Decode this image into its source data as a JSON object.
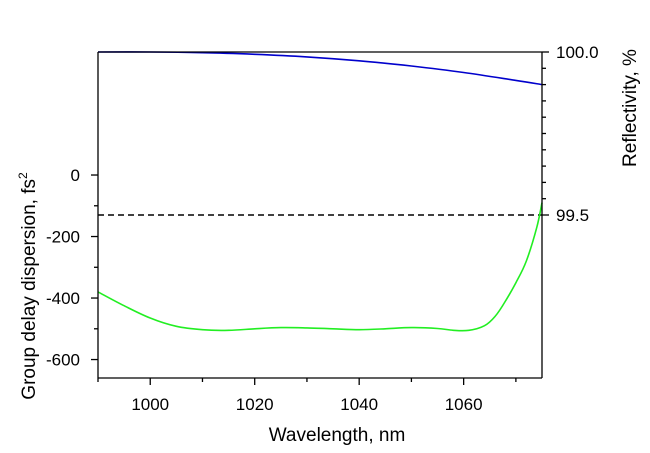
{
  "chart_data": {
    "type": "line",
    "title": "",
    "xlabel": "Wavelength, nm",
    "ylabel_left": "Group delay dispersion, fs",
    "ylabel_left_sup": "2",
    "ylabel_right": "Reflectivity, %",
    "xlim": [
      990,
      1075
    ],
    "ylim_left": [
      -660,
      400
    ],
    "ylim_right": [
      99.0,
      100.0
    ],
    "x_ticks": [
      1000,
      1020,
      1040,
      1060
    ],
    "x_minor_ticks": [
      990,
      1010,
      1030,
      1050,
      1070
    ],
    "y_left_ticks": [
      0,
      -200,
      -400,
      -600
    ],
    "y_left_tick_labels": [
      "0",
      "-200",
      "-400",
      "-600"
    ],
    "y_left_minor_ticks": [
      -100,
      -300,
      -500
    ],
    "y_right_ticks": [
      100.0,
      99.5
    ],
    "y_right_tick_labels": [
      "100.0",
      "99.5"
    ],
    "y_right_minor_ticks": [
      99.95,
      99.9,
      99.85,
      99.8,
      99.75,
      99.7,
      99.65,
      99.6,
      99.55
    ],
    "grid": false,
    "series": [
      {
        "axis": "right",
        "color": "#0000cc",
        "style": "solid",
        "x": [
          990,
          1000,
          1010,
          1020,
          1030,
          1040,
          1050,
          1060,
          1070,
          1075
        ],
        "y": [
          100.0,
          100.0,
          99.998,
          99.993,
          99.985,
          99.973,
          99.957,
          99.937,
          99.913,
          99.9
        ]
      },
      {
        "axis": "right",
        "color": "#000000",
        "style": "dashed",
        "x": [
          990,
          1075
        ],
        "y": [
          99.5,
          99.5
        ]
      },
      {
        "axis": "left",
        "color": "#22ee22",
        "style": "solid",
        "x": [
          990,
          995,
          1000,
          1005,
          1010,
          1015,
          1020,
          1025,
          1030,
          1035,
          1040,
          1045,
          1050,
          1055,
          1058,
          1061,
          1064,
          1066,
          1068,
          1070,
          1072,
          1074,
          1075
        ],
        "y": [
          -380,
          -425,
          -465,
          -492,
          -503,
          -505,
          -500,
          -496,
          -497,
          -500,
          -503,
          -500,
          -496,
          -499,
          -505,
          -505,
          -490,
          -460,
          -410,
          -350,
          -280,
          -170,
          -90
        ]
      }
    ]
  }
}
